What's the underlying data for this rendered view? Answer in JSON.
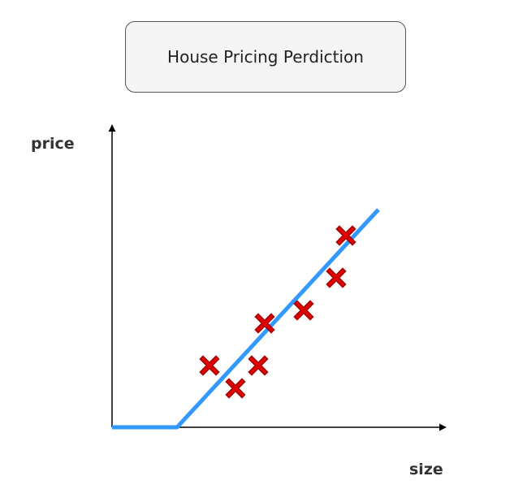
{
  "title": "House Pricing Perdiction",
  "chart_data": {
    "type": "scatter",
    "title": "House Pricing Perdiction",
    "xlabel": "size",
    "ylabel": "price",
    "xlim": [
      0,
      10
    ],
    "ylim": [
      0,
      9
    ],
    "grid": false,
    "legend": "none",
    "marker": "x",
    "points": [
      {
        "x": 3.0,
        "y": 1.9
      },
      {
        "x": 3.8,
        "y": 1.2
      },
      {
        "x": 4.5,
        "y": 1.9
      },
      {
        "x": 4.7,
        "y": 3.2
      },
      {
        "x": 5.9,
        "y": 3.6
      },
      {
        "x": 6.9,
        "y": 4.6
      },
      {
        "x": 7.2,
        "y": 5.9
      }
    ],
    "fit_line": [
      {
        "x": 0,
        "y": 0
      },
      {
        "x": 2.0,
        "y": 0
      },
      {
        "x": 8.2,
        "y": 6.7
      }
    ],
    "colors": {
      "points": "#dd0000",
      "points_outline": "#990000",
      "line": "#3399ff",
      "axes": "#000000"
    }
  }
}
